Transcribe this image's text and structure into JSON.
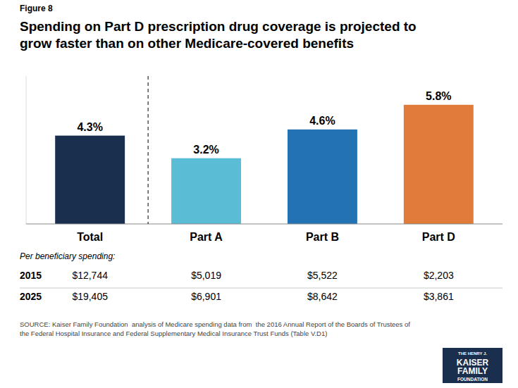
{
  "chart_data": {
    "type": "bar",
    "title": "Spending on Part D prescription drug coverage is projected to\ngrow faster than on other Medicare-covered benefits",
    "categories": [
      "Total",
      "Part A",
      "Part B",
      "Part D"
    ],
    "values": [
      4.3,
      3.2,
      4.6,
      5.8
    ],
    "value_labels": [
      "4.3%",
      "3.2%",
      "4.6%",
      "5.8%"
    ],
    "colors": [
      "#1a2f4e",
      "#5bbcd6",
      "#2272b4",
      "#e07b39"
    ],
    "ylim": [
      0,
      7.2
    ],
    "yticks": [],
    "grid": false,
    "data_labels": true,
    "tick_labels": "x",
    "table": {
      "label": "Per beneficiary spending:",
      "rows": [
        {
          "name": "2015",
          "cells": [
            "$12,744",
            "$5,019",
            "$5,522",
            "$2,203"
          ]
        },
        {
          "name": "2025",
          "cells": [
            "$19,405",
            "$6,901",
            "$8,642",
            "$3,861"
          ]
        }
      ]
    },
    "annotations": [
      "Figure 8",
      "SOURCE: Kaiser Family Foundation  analysis of Medicare spending data from  the 2016 Annual Report of the Boards of Trustees of\nthe Federal Hospital Insurance and Federal Supplementary Medical Insurance Trust Funds (Table V.D1)",
      "THE HENRY J.",
      "KAISER",
      "FAMILY",
      "FOUNDATION"
    ]
  }
}
